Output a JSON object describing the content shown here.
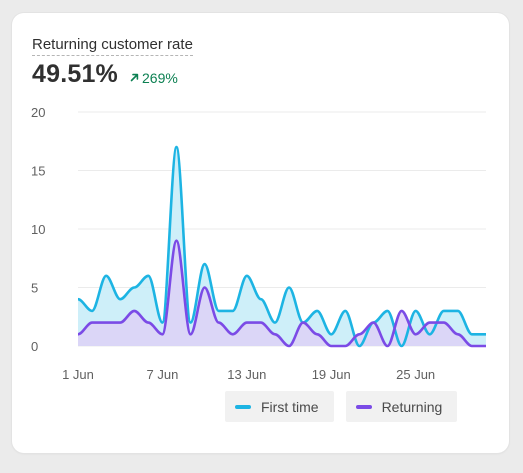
{
  "card": {
    "title": "Returning customer rate",
    "metric_value": "49.51%",
    "metric_change": "269%",
    "change_icon": "arrow-up-right-icon",
    "change_color": "#0c8052"
  },
  "chart_data": {
    "type": "area",
    "x": [
      "1 Jun",
      "2 Jun",
      "3 Jun",
      "4 Jun",
      "5 Jun",
      "6 Jun",
      "7 Jun",
      "8 Jun",
      "9 Jun",
      "10 Jun",
      "11 Jun",
      "12 Jun",
      "13 Jun",
      "14 Jun",
      "15 Jun",
      "16 Jun",
      "17 Jun",
      "18 Jun",
      "19 Jun",
      "20 Jun",
      "21 Jun",
      "22 Jun",
      "23 Jun",
      "24 Jun",
      "25 Jun",
      "26 Jun",
      "27 Jun",
      "28 Jun",
      "29 Jun",
      "30 Jun"
    ],
    "x_ticks": [
      "1 Jun",
      "7 Jun",
      "13 Jun",
      "19 Jun",
      "25 Jun"
    ],
    "y_ticks": [
      0,
      5,
      10,
      15,
      20
    ],
    "ylim": [
      0,
      20
    ],
    "grid": true,
    "legend_position": "bottom-right",
    "series": [
      {
        "name": "First time",
        "color": "#1db4e3",
        "fill": "#c6ecf8",
        "values": [
          4,
          3,
          6,
          4,
          5,
          6,
          2,
          17,
          2,
          7,
          3,
          3,
          6,
          4,
          2,
          5,
          2,
          3,
          1,
          3,
          0,
          2,
          3,
          0,
          3,
          1,
          3,
          3,
          1,
          1
        ]
      },
      {
        "name": "Returning",
        "color": "#7b4be6",
        "fill": "#ddd1f7",
        "values": [
          1,
          2,
          2,
          2,
          3,
          2,
          1,
          9,
          1,
          5,
          2,
          1,
          2,
          2,
          1,
          0,
          2,
          1,
          0,
          0,
          1,
          2,
          0,
          3,
          1,
          2,
          2,
          1,
          0,
          0
        ]
      }
    ]
  }
}
